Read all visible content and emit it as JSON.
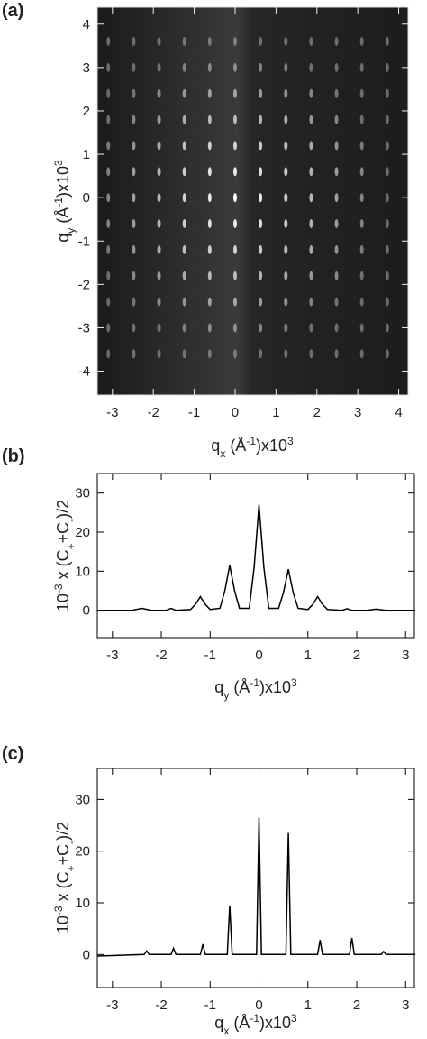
{
  "chart_data": [
    {
      "type": "image",
      "panel_label": "(a)",
      "xlabel": [
        "q",
        "x",
        " (Å",
        "-1",
        ")x10",
        "3"
      ],
      "ylabel": [
        "q",
        "y",
        " (Å",
        "-1",
        ")x10",
        "3"
      ],
      "xlim": [
        -3.37,
        4.23
      ],
      "ylim": [
        -4.55,
        4.39
      ],
      "xticks": [
        -3,
        -2,
        -1,
        0,
        1,
        2,
        3,
        4
      ],
      "yticks": [
        -4,
        -3,
        -2,
        -1,
        0,
        1,
        2,
        3,
        4
      ],
      "spots": {
        "qx": [
          -3.1,
          -2.48,
          -1.86,
          -1.24,
          -0.62,
          0,
          0.62,
          1.24,
          1.86,
          2.48,
          3.1,
          3.72
        ],
        "qy": [
          -3.6,
          -3.0,
          -2.4,
          -1.8,
          -1.2,
          -0.6,
          0,
          0.6,
          1.2,
          1.8,
          2.4,
          3.0,
          3.6
        ]
      }
    },
    {
      "type": "line",
      "panel_label": "(b)",
      "xlabel": [
        "q",
        "y",
        " (Å",
        "-1",
        ")x10",
        "3"
      ],
      "ylabel": [
        "10",
        "-3",
        " x (C",
        "+",
        "+C",
        "-",
        ")/2"
      ],
      "xlim": [
        -3.31,
        3.18
      ],
      "ylim": [
        -7,
        35
      ],
      "xticks": [
        -3,
        -2,
        -1,
        0,
        1,
        2,
        3
      ],
      "yticks": [
        0,
        10,
        20,
        30
      ],
      "color": "#000000",
      "x": [
        -3.3,
        -2.6,
        -2.4,
        -2.2,
        -1.9,
        -1.8,
        -1.7,
        -1.4,
        -1.3,
        -1.2,
        -1.1,
        -1.0,
        -0.8,
        -0.7,
        -0.6,
        -0.5,
        -0.4,
        -0.2,
        -0.1,
        0,
        0.1,
        0.2,
        0.4,
        0.5,
        0.6,
        0.7,
        0.8,
        1.0,
        1.1,
        1.2,
        1.3,
        1.4,
        1.7,
        1.8,
        1.9,
        2.2,
        2.4,
        2.6,
        3.2
      ],
      "values": [
        0,
        0,
        0.5,
        0,
        0,
        0.5,
        0,
        0.2,
        1.5,
        3.5,
        1.5,
        0.2,
        0.5,
        5,
        11.5,
        5,
        0.5,
        0.5,
        11,
        27,
        11,
        0.5,
        0.5,
        4.5,
        10.5,
        4.5,
        0.5,
        0.2,
        1.5,
        3.5,
        1.5,
        0.2,
        0,
        0.4,
        0,
        0,
        0.3,
        0,
        0
      ]
    },
    {
      "type": "line",
      "panel_label": "(c)",
      "xlabel": [
        "q",
        "x",
        " (Å",
        "-1",
        ")x10",
        "3"
      ],
      "ylabel": [
        "10",
        "-3",
        " x (C",
        "+",
        "+C",
        "-",
        ")/2"
      ],
      "xlim": [
        -3.31,
        3.18
      ],
      "ylim": [
        -6.4,
        36
      ],
      "xticks": [
        -3,
        -2,
        -1,
        0,
        1,
        2,
        3
      ],
      "yticks": [
        0,
        10,
        20,
        30
      ],
      "color": "#000000",
      "x": [
        -3.3,
        -2.35,
        -2.3,
        -2.25,
        -1.8,
        -1.75,
        -1.7,
        -1.2,
        -1.15,
        -1.1,
        -0.65,
        -0.6,
        -0.55,
        -0.05,
        0,
        0.05,
        0.55,
        0.6,
        0.65,
        1.2,
        1.25,
        1.3,
        1.85,
        1.9,
        1.95,
        2.5,
        2.55,
        2.6,
        3.2
      ],
      "values": [
        -0.3,
        0,
        0.7,
        0,
        0,
        1.2,
        0,
        0,
        2,
        0,
        0,
        9.5,
        0,
        0,
        26.5,
        0,
        0,
        23.5,
        0,
        0,
        2.8,
        0,
        0,
        3.2,
        0,
        0,
        0.6,
        0,
        0
      ]
    }
  ]
}
